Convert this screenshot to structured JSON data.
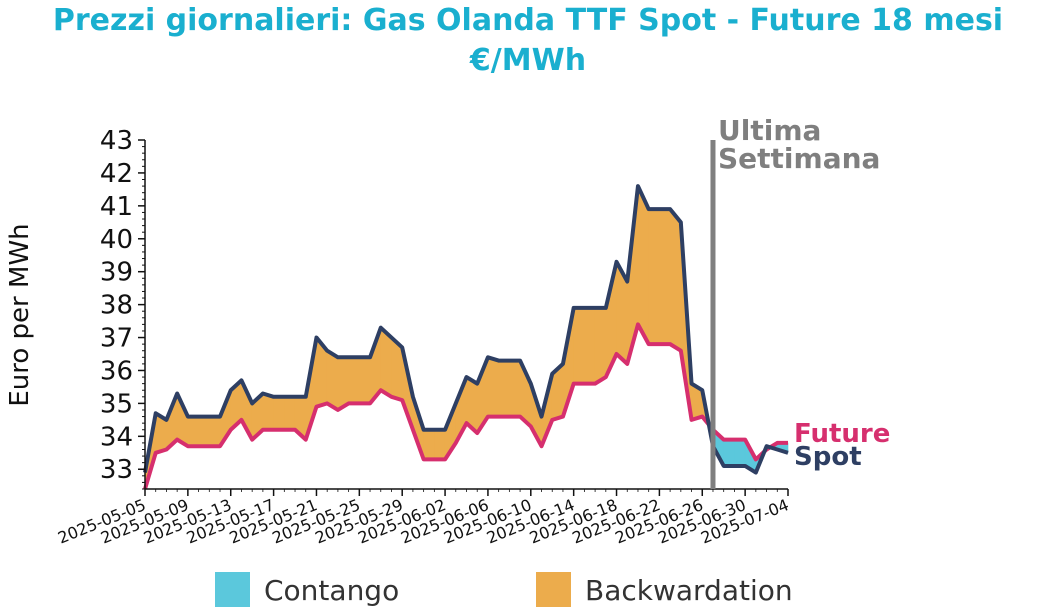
{
  "chart_data": {
    "type": "area",
    "title": "Prezzi giornalieri: Gas Olanda TTF Spot - Future 18 mesi",
    "subtitle": "€/MWh",
    "ylabel": "Euro per MWh",
    "xlabel": "",
    "ylim": [
      32.4,
      43
    ],
    "yticks": [
      33,
      34,
      35,
      36,
      37,
      38,
      39,
      40,
      41,
      42,
      43
    ],
    "x_range": [
      "2025-05-05",
      "2025-07-04"
    ],
    "xticks": [
      "2025-05-05",
      "2025-05-09",
      "2025-05-13",
      "2025-05-17",
      "2025-05-21",
      "2025-05-25",
      "2025-05-29",
      "2025-06-02",
      "2025-06-06",
      "2025-06-10",
      "2025-06-14",
      "2025-06-18",
      "2025-06-22",
      "2025-06-26",
      "2025-06-30",
      "2025-07-04"
    ],
    "grid": false,
    "legend_placement": "bottom",
    "legend": [
      {
        "label": "Contango",
        "color": "#5bc8dc"
      },
      {
        "label": "Backwardation",
        "color": "#ecac4c"
      }
    ],
    "annotation": {
      "text_line1": "Ultima",
      "text_line2": "Settimana",
      "date": "2025-06-27",
      "color": "#7f7f7f"
    },
    "end_labels": {
      "future": "Future",
      "spot": "Spot"
    },
    "colors": {
      "spot": "#2e3f63",
      "future": "#d62f6e",
      "contango": "#5bc8dc",
      "backwardation": "#ecac4c",
      "title": "#1aafcf"
    },
    "series": [
      {
        "name": "Spot",
        "points": [
          [
            "2025-05-05",
            32.9
          ],
          [
            "2025-05-06",
            34.7
          ],
          [
            "2025-05-07",
            34.5
          ],
          [
            "2025-05-08",
            35.3
          ],
          [
            "2025-05-09",
            34.6
          ],
          [
            "2025-05-10",
            34.6
          ],
          [
            "2025-05-11",
            34.6
          ],
          [
            "2025-05-12",
            34.6
          ],
          [
            "2025-05-13",
            35.4
          ],
          [
            "2025-05-14",
            35.7
          ],
          [
            "2025-05-15",
            35.0
          ],
          [
            "2025-05-16",
            35.3
          ],
          [
            "2025-05-17",
            35.2
          ],
          [
            "2025-05-18",
            35.2
          ],
          [
            "2025-05-19",
            35.2
          ],
          [
            "2025-05-20",
            35.2
          ],
          [
            "2025-05-21",
            37.0
          ],
          [
            "2025-05-22",
            36.6
          ],
          [
            "2025-05-23",
            36.4
          ],
          [
            "2025-05-24",
            36.4
          ],
          [
            "2025-05-25",
            36.4
          ],
          [
            "2025-05-26",
            36.4
          ],
          [
            "2025-05-27",
            37.3
          ],
          [
            "2025-05-28",
            37.0
          ],
          [
            "2025-05-29",
            36.7
          ],
          [
            "2025-05-30",
            35.2
          ],
          [
            "2025-05-31",
            34.2
          ],
          [
            "2025-06-01",
            34.2
          ],
          [
            "2025-06-02",
            34.2
          ],
          [
            "2025-06-03",
            35.0
          ],
          [
            "2025-06-04",
            35.8
          ],
          [
            "2025-06-05",
            35.6
          ],
          [
            "2025-06-06",
            36.4
          ],
          [
            "2025-06-07",
            36.3
          ],
          [
            "2025-06-08",
            36.3
          ],
          [
            "2025-06-09",
            36.3
          ],
          [
            "2025-06-10",
            35.6
          ],
          [
            "2025-06-11",
            34.6
          ],
          [
            "2025-06-12",
            35.9
          ],
          [
            "2025-06-13",
            36.2
          ],
          [
            "2025-06-14",
            37.9
          ],
          [
            "2025-06-15",
            37.9
          ],
          [
            "2025-06-16",
            37.9
          ],
          [
            "2025-06-17",
            37.9
          ],
          [
            "2025-06-18",
            39.3
          ],
          [
            "2025-06-19",
            38.7
          ],
          [
            "2025-06-20",
            41.6
          ],
          [
            "2025-06-21",
            40.9
          ],
          [
            "2025-06-22",
            40.9
          ],
          [
            "2025-06-23",
            40.9
          ],
          [
            "2025-06-24",
            40.5
          ],
          [
            "2025-06-25",
            35.6
          ],
          [
            "2025-06-26",
            35.4
          ],
          [
            "2025-06-27",
            33.7
          ],
          [
            "2025-06-28",
            33.1
          ],
          [
            "2025-06-29",
            33.1
          ],
          [
            "2025-06-30",
            33.1
          ],
          [
            "2025-07-01",
            32.9
          ],
          [
            "2025-07-02",
            33.7
          ],
          [
            "2025-07-03",
            33.6
          ],
          [
            "2025-07-04",
            33.5
          ]
        ]
      },
      {
        "name": "Future",
        "points": [
          [
            "2025-05-05",
            32.4
          ],
          [
            "2025-05-06",
            33.5
          ],
          [
            "2025-05-07",
            33.6
          ],
          [
            "2025-05-08",
            33.9
          ],
          [
            "2025-05-09",
            33.7
          ],
          [
            "2025-05-10",
            33.7
          ],
          [
            "2025-05-11",
            33.7
          ],
          [
            "2025-05-12",
            33.7
          ],
          [
            "2025-05-13",
            34.2
          ],
          [
            "2025-05-14",
            34.5
          ],
          [
            "2025-05-15",
            33.9
          ],
          [
            "2025-05-16",
            34.2
          ],
          [
            "2025-05-17",
            34.2
          ],
          [
            "2025-05-18",
            34.2
          ],
          [
            "2025-05-19",
            34.2
          ],
          [
            "2025-05-20",
            33.9
          ],
          [
            "2025-05-21",
            34.9
          ],
          [
            "2025-05-22",
            35.0
          ],
          [
            "2025-05-23",
            34.8
          ],
          [
            "2025-05-24",
            35.0
          ],
          [
            "2025-05-25",
            35.0
          ],
          [
            "2025-05-26",
            35.0
          ],
          [
            "2025-05-27",
            35.4
          ],
          [
            "2025-05-28",
            35.2
          ],
          [
            "2025-05-29",
            35.1
          ],
          [
            "2025-05-30",
            34.2
          ],
          [
            "2025-05-31",
            33.3
          ],
          [
            "2025-06-01",
            33.3
          ],
          [
            "2025-06-02",
            33.3
          ],
          [
            "2025-06-03",
            33.8
          ],
          [
            "2025-06-04",
            34.4
          ],
          [
            "2025-06-05",
            34.1
          ],
          [
            "2025-06-06",
            34.6
          ],
          [
            "2025-06-07",
            34.6
          ],
          [
            "2025-06-08",
            34.6
          ],
          [
            "2025-06-09",
            34.6
          ],
          [
            "2025-06-10",
            34.3
          ],
          [
            "2025-06-11",
            33.7
          ],
          [
            "2025-06-12",
            34.5
          ],
          [
            "2025-06-13",
            34.6
          ],
          [
            "2025-06-14",
            35.6
          ],
          [
            "2025-06-15",
            35.6
          ],
          [
            "2025-06-16",
            35.6
          ],
          [
            "2025-06-17",
            35.8
          ],
          [
            "2025-06-18",
            36.5
          ],
          [
            "2025-06-19",
            36.2
          ],
          [
            "2025-06-20",
            37.4
          ],
          [
            "2025-06-21",
            36.8
          ],
          [
            "2025-06-22",
            36.8
          ],
          [
            "2025-06-23",
            36.8
          ],
          [
            "2025-06-24",
            36.6
          ],
          [
            "2025-06-25",
            34.5
          ],
          [
            "2025-06-26",
            34.6
          ],
          [
            "2025-06-27",
            34.2
          ],
          [
            "2025-06-28",
            33.9
          ],
          [
            "2025-06-29",
            33.9
          ],
          [
            "2025-06-30",
            33.9
          ],
          [
            "2025-07-01",
            33.3
          ],
          [
            "2025-07-02",
            33.6
          ],
          [
            "2025-07-03",
            33.8
          ],
          [
            "2025-07-04",
            33.8
          ]
        ]
      }
    ]
  }
}
